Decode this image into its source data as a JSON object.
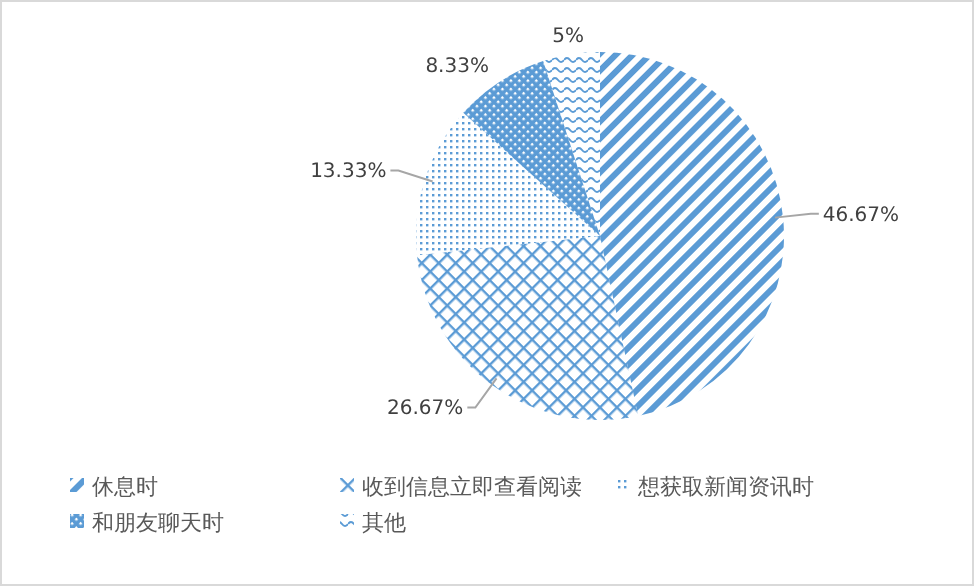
{
  "chart_data": {
    "type": "pie",
    "categories": [
      "休息时",
      "收到信息立即查看阅读",
      "想获取新闻资讯时",
      "和朋友聊天时",
      "其他"
    ],
    "values": [
      46.67,
      26.67,
      13.33,
      8.33,
      5
    ],
    "colors": [
      "#5b9bd5",
      "#5b9bd5",
      "#5b9bd5",
      "#5b9bd5",
      "#5b9bd5"
    ],
    "value_labels": [
      "46.67%",
      "26.67%",
      "13.33%",
      "8.33%",
      "5%"
    ],
    "legend": "bottom"
  }
}
